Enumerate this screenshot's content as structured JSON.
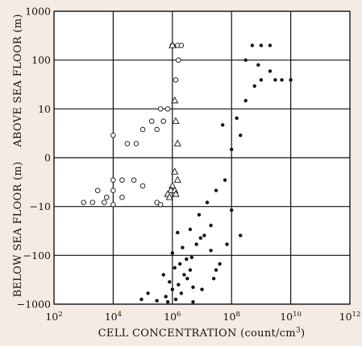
{
  "chart_data": {
    "type": "scatter",
    "xlabel_main": "CELL CONCENTRATION (count/cm",
    "xlabel_sup": "3",
    "xlabel_end": ")",
    "ylabel_upper": "ABOVE SEA FLOOR (m)",
    "ylabel_lower": "BELOW SEA FLOOR (m)",
    "x_scale": "log",
    "xlim": [
      100,
      1000000000000
    ],
    "x_ticks": [
      {
        "base": "10",
        "exp": "2",
        "value": 100
      },
      {
        "base": "10",
        "exp": "4",
        "value": 10000
      },
      {
        "base": "10",
        "exp": "6",
        "value": 1000000
      },
      {
        "base": "10",
        "exp": "8",
        "value": 100000000
      },
      {
        "base": "10",
        "exp": "10",
        "value": 10000000000
      },
      {
        "base": "10",
        "exp": "12",
        "value": 1000000000000
      }
    ],
    "y_scale": "symmetric-log",
    "ylim": [
      -1000,
      1000
    ],
    "y_ticks": [
      {
        "label": "1000",
        "value": 1000
      },
      {
        "label": "100",
        "value": 100
      },
      {
        "label": "10",
        "value": 10
      },
      {
        "label": "0",
        "value": 0
      },
      {
        "label": "−10",
        "value": -10
      },
      {
        "label": "−100",
        "value": -100
      },
      {
        "label": "−1000",
        "value": -1000
      }
    ],
    "grid": true,
    "series": [
      {
        "marker": "filled-circle",
        "points": [
          [
            2000000.0,
            -600
          ],
          [
            1600000.0,
            -400
          ],
          [
            3200000.0,
            -300
          ],
          [
            1000000.0,
            -500
          ],
          [
            600000.0,
            -700
          ],
          [
            4000000.0,
            -200
          ],
          [
            2500000.0,
            -250
          ],
          [
            1300000.0,
            -800
          ],
          [
            800000.0,
            -350
          ],
          [
            5000000.0,
            -450
          ],
          [
            1800000.0,
            -150
          ],
          [
            3000000.0,
            -120
          ],
          [
            1000000.0,
            -90
          ],
          [
            6500000.0,
            -60
          ],
          [
            12000000.0,
            -40
          ],
          [
            20000000.0,
            -25
          ],
          [
            4000000.0,
            -30
          ],
          [
            8000000.0,
            -15
          ],
          [
            15000000.0,
            -8
          ],
          [
            30000000.0,
            -4
          ],
          [
            60000000.0,
            -2
          ],
          [
            100000000.0,
            0.5
          ],
          [
            200000000.0,
            2
          ],
          [
            50000000.0,
            4
          ],
          [
            150000000.0,
            6
          ],
          [
            300000000.0,
            15
          ],
          [
            600000000.0,
            30
          ],
          [
            1000000000.0,
            40
          ],
          [
            2000000000.0,
            60
          ],
          [
            500000000.0,
            200
          ],
          [
            1000000000.0,
            200
          ],
          [
            2000000000.0,
            200
          ],
          [
            300000000.0,
            100
          ],
          [
            800000000.0,
            80
          ],
          [
            3000000000.0,
            40
          ],
          [
            5000000000.0,
            40
          ],
          [
            10000000000.0,
            40
          ],
          [
            40000000.0,
            -150
          ],
          [
            25000000.0,
            -300
          ],
          [
            10000000.0,
            -500
          ],
          [
            700000.0,
            -900
          ],
          [
            300000.0,
            -850
          ],
          [
            150000.0,
            -600
          ],
          [
            90000.0,
            -800
          ],
          [
            5000000.0,
            -900
          ],
          [
            20000000.0,
            -80
          ],
          [
            100000000.0,
            -12
          ],
          [
            200000000.0,
            -40
          ],
          [
            70000000.0,
            -60
          ],
          [
            30000000.0,
            -200
          ],
          [
            500000.0,
            -250
          ],
          [
            1200000.0,
            -180
          ],
          [
            2200000.0,
            -70
          ],
          [
            4500000.0,
            -110
          ],
          [
            9000000.0,
            -45
          ],
          [
            1500000.0,
            -35
          ]
        ]
      },
      {
        "marker": "open-circle",
        "points": [
          [
            1000000.0,
            200
          ],
          [
            1500000.0,
            200
          ],
          [
            2000000.0,
            200
          ],
          [
            1600000.0,
            100
          ],
          [
            1300000.0,
            40
          ],
          [
            400000.0,
            10
          ],
          [
            700000.0,
            10
          ],
          [
            200000.0,
            5
          ],
          [
            500000.0,
            5
          ],
          [
            100000.0,
            3
          ],
          [
            300000.0,
            3
          ],
          [
            10000.0,
            2
          ],
          [
            30000.0,
            1
          ],
          [
            60000.0,
            1
          ],
          [
            10000.0,
            -2
          ],
          [
            20000.0,
            -2
          ],
          [
            50000.0,
            -2
          ],
          [
            10000.0,
            -4
          ],
          [
            3000.0,
            -4
          ],
          [
            6000.0,
            -6
          ],
          [
            20000.0,
            -6
          ],
          [
            1000.0,
            -8
          ],
          [
            2000.0,
            -8
          ],
          [
            5000.0,
            -8
          ],
          [
            10000.0,
            -9
          ],
          [
            300000.0,
            -8
          ],
          [
            400000.0,
            -9
          ],
          [
            100000.0,
            -3
          ]
        ]
      },
      {
        "marker": "open-triangle",
        "points": [
          [
            1000000.0,
            200
          ],
          [
            1200000.0,
            15
          ],
          [
            1300000.0,
            5
          ],
          [
            1500000.0,
            1
          ],
          [
            1200000.0,
            -1
          ],
          [
            1000000.0,
            -3
          ],
          [
            1500000.0,
            -2
          ],
          [
            900000.0,
            -4
          ],
          [
            700000.0,
            -5
          ],
          [
            1200000.0,
            -4
          ],
          [
            800000.0,
            -6
          ],
          [
            1300000.0,
            -5
          ]
        ]
      }
    ]
  }
}
